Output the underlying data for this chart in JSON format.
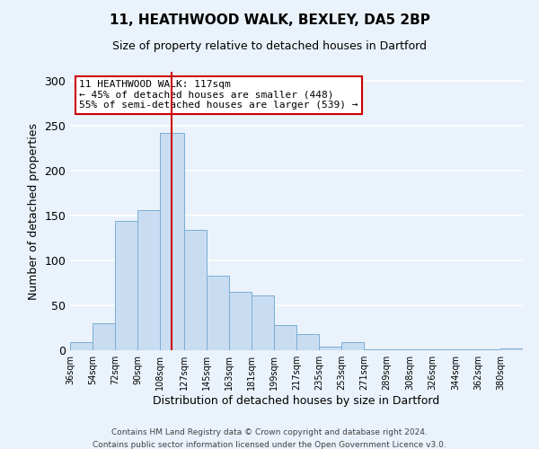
{
  "title": "11, HEATHWOOD WALK, BEXLEY, DA5 2BP",
  "subtitle": "Size of property relative to detached houses in Dartford",
  "xlabel": "Distribution of detached houses by size in Dartford",
  "ylabel": "Number of detached properties",
  "bar_color": "#c9ddf2",
  "bar_edge_color": "#7aadd4",
  "background_color": "#eaf2fb",
  "grid_color": "#ffffff",
  "vline_value": 117,
  "vline_color": "#cc0000",
  "annotation_title": "11 HEATHWOOD WALK: 117sqm",
  "annotation_line1": "← 45% of detached houses are smaller (448)",
  "annotation_line2": "55% of semi-detached houses are larger (539) →",
  "annotation_box_color": "#ffffff",
  "annotation_box_edge": "#cc0000",
  "bins": [
    36,
    54,
    72,
    90,
    108,
    127,
    145,
    163,
    181,
    199,
    217,
    235,
    253,
    271,
    289,
    308,
    326,
    344,
    362,
    380,
    398
  ],
  "counts": [
    9,
    30,
    144,
    156,
    242,
    134,
    83,
    65,
    61,
    28,
    18,
    4,
    9,
    1,
    1,
    1,
    1,
    1,
    1,
    2
  ],
  "ylim": [
    0,
    310
  ],
  "yticks": [
    0,
    50,
    100,
    150,
    200,
    250,
    300
  ],
  "footer1": "Contains HM Land Registry data © Crown copyright and database right 2024.",
  "footer2": "Contains public sector information licensed under the Open Government Licence v3.0."
}
